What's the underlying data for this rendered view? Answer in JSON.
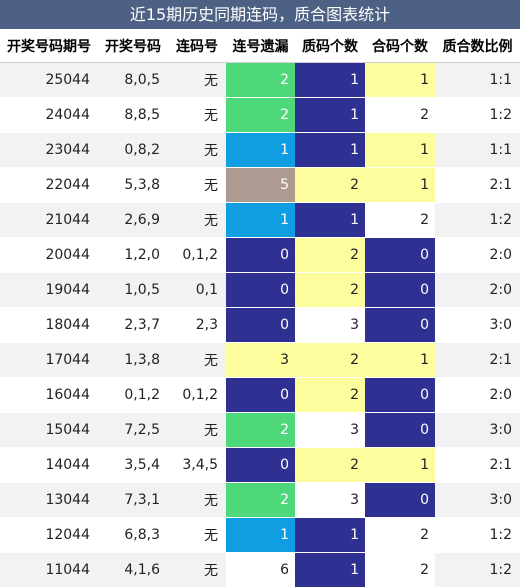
{
  "title": "近15期历史同期连码，质合图表统计",
  "colors": {
    "header_bg": "#4d6184",
    "green": "#4ed87a",
    "blue": "#109ee2",
    "navy": "#2e3192",
    "yellow": "#fdfd9e",
    "tan": "#ad9a90",
    "white": "#ffffff"
  },
  "chart_data": {
    "type": "table",
    "columns": [
      "开奖号码期号",
      "开奖号码",
      "连码号",
      "连号遗漏",
      "质码个数",
      "合码个数",
      "质合数比例"
    ],
    "rows": [
      {
        "issue": "25044",
        "numbers": "8,0,5",
        "consec": "无",
        "miss": "2",
        "prime": "1",
        "composite": "1",
        "ratio": "1:1"
      },
      {
        "issue": "24044",
        "numbers": "8,8,5",
        "consec": "无",
        "miss": "2",
        "prime": "1",
        "composite": "2",
        "ratio": "1:2"
      },
      {
        "issue": "23044",
        "numbers": "0,8,2",
        "consec": "无",
        "miss": "1",
        "prime": "1",
        "composite": "1",
        "ratio": "1:1"
      },
      {
        "issue": "22044",
        "numbers": "5,3,8",
        "consec": "无",
        "miss": "5",
        "prime": "2",
        "composite": "1",
        "ratio": "2:1"
      },
      {
        "issue": "21044",
        "numbers": "2,6,9",
        "consec": "无",
        "miss": "1",
        "prime": "1",
        "composite": "2",
        "ratio": "1:2"
      },
      {
        "issue": "20044",
        "numbers": "1,2,0",
        "consec": "0,1,2",
        "miss": "0",
        "prime": "2",
        "composite": "0",
        "ratio": "2:0"
      },
      {
        "issue": "19044",
        "numbers": "1,0,5",
        "consec": "0,1",
        "miss": "0",
        "prime": "2",
        "composite": "0",
        "ratio": "2:0"
      },
      {
        "issue": "18044",
        "numbers": "2,3,7",
        "consec": "2,3",
        "miss": "0",
        "prime": "3",
        "composite": "0",
        "ratio": "3:0"
      },
      {
        "issue": "17044",
        "numbers": "1,3,8",
        "consec": "无",
        "miss": "3",
        "prime": "2",
        "composite": "1",
        "ratio": "2:1"
      },
      {
        "issue": "16044",
        "numbers": "0,1,2",
        "consec": "0,1,2",
        "miss": "0",
        "prime": "2",
        "composite": "0",
        "ratio": "2:0"
      },
      {
        "issue": "15044",
        "numbers": "7,2,5",
        "consec": "无",
        "miss": "2",
        "prime": "3",
        "composite": "0",
        "ratio": "3:0"
      },
      {
        "issue": "14044",
        "numbers": "3,5,4",
        "consec": "3,4,5",
        "miss": "0",
        "prime": "2",
        "composite": "1",
        "ratio": "2:1"
      },
      {
        "issue": "13044",
        "numbers": "7,3,1",
        "consec": "无",
        "miss": "2",
        "prime": "3",
        "composite": "0",
        "ratio": "3:0"
      },
      {
        "issue": "12044",
        "numbers": "6,8,3",
        "consec": "无",
        "miss": "1",
        "prime": "1",
        "composite": "2",
        "ratio": "1:2"
      },
      {
        "issue": "11044",
        "numbers": "4,1,6",
        "consec": "无",
        "miss": "6",
        "prime": "1",
        "composite": "2",
        "ratio": "1:2"
      }
    ],
    "cell_colors": [
      [
        "green",
        "navy",
        "yellow"
      ],
      [
        "green",
        "navy",
        "white"
      ],
      [
        "blue",
        "navy",
        "yellow"
      ],
      [
        "tan",
        "yellow",
        "yellow"
      ],
      [
        "blue",
        "navy",
        "white"
      ],
      [
        "navy",
        "yellow",
        "navy"
      ],
      [
        "navy",
        "yellow",
        "navy"
      ],
      [
        "navy",
        "white",
        "navy"
      ],
      [
        "yellow",
        "yellow",
        "yellow"
      ],
      [
        "navy",
        "yellow",
        "navy"
      ],
      [
        "green",
        "white",
        "navy"
      ],
      [
        "navy",
        "yellow",
        "yellow"
      ],
      [
        "green",
        "white",
        "navy"
      ],
      [
        "blue",
        "navy",
        "white"
      ],
      [
        "white",
        "navy",
        "white"
      ]
    ]
  }
}
